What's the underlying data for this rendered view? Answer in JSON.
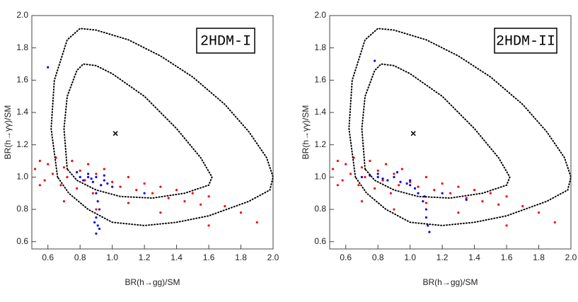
{
  "chart_data": [
    {
      "type": "scatter",
      "title": "2HDM-I",
      "x_label": "BR(h→gg)/SM",
      "y_label": "BR(h→γγ)/SM",
      "xlim": [
        0.5,
        2.0
      ],
      "ylim": [
        0.555,
        2.0
      ],
      "xticks": [
        0.6,
        0.8,
        {
          "value": 1,
          "label": "1.0"
        },
        1.2,
        1.4,
        1.6,
        1.8,
        {
          "value": 2,
          "label": "2.0"
        }
      ],
      "yticks": [
        0.6,
        0.8,
        {
          "value": 1,
          "label": "1.0"
        },
        1.2,
        1.4,
        1.6,
        1.8,
        {
          "value": 2,
          "label": "2.0"
        }
      ],
      "grid": false,
      "series": [
        {
          "color": "#ff0000",
          "style": "points",
          "x": [
            0.52,
            0.55,
            0.58,
            0.6,
            0.63,
            0.65,
            0.68,
            0.7,
            0.72,
            0.75,
            0.78,
            0.8,
            0.83,
            0.85,
            0.88,
            0.9,
            0.93,
            0.95,
            1.0,
            1.05,
            1.1,
            1.15,
            1.2,
            1.25,
            1.3,
            1.35,
            1.4,
            1.45,
            1.5,
            1.55,
            1.6,
            1.7,
            1.8,
            1.9,
            0.55,
            0.7,
            0.9,
            1.1,
            1.3,
            1.6
          ],
          "values": [
            1.05,
            1.1,
            0.98,
            1.08,
            1.02,
            1.12,
            0.95,
            1.06,
            1.0,
            1.1,
            0.93,
            1.04,
            0.98,
            1.08,
            0.9,
            1.02,
            0.95,
            1.05,
            0.97,
            0.94,
            1.0,
            0.92,
            0.96,
            0.9,
            0.94,
            0.87,
            0.92,
            0.85,
            0.9,
            0.83,
            0.88,
            0.82,
            0.78,
            0.72,
            0.95,
            0.85,
            0.8,
            0.84,
            0.78,
            0.7
          ]
        },
        {
          "color": "#0000ff",
          "style": "points",
          "x": [
            0.8,
            0.82,
            0.85,
            0.87,
            0.88,
            0.9,
            0.9,
            0.91,
            0.92,
            0.93,
            0.95,
            0.97,
            1.0,
            0.9,
            0.91,
            0.9,
            0.92,
            0.89,
            0.6,
            1.2,
            0.78,
            0.85,
            0.95
          ],
          "values": [
            1.0,
            0.98,
            1.02,
            0.99,
            0.97,
            1.0,
            0.9,
            0.85,
            0.8,
            0.95,
            0.98,
            0.96,
            0.94,
            0.75,
            0.7,
            0.65,
            0.68,
            0.72,
            1.68,
            0.9,
            1.03,
            1.0,
            1.01
          ]
        },
        {
          "color": "#000000",
          "style": "dotted",
          "x": [
            0.66,
            0.62,
            0.64,
            0.72,
            0.8,
            0.9,
            1.1,
            1.3,
            1.5,
            1.7,
            1.85,
            1.96,
            2.0,
            1.98,
            1.85,
            1.6,
            1.4,
            1.2,
            1.0,
            0.85,
            0.73,
            0.66
          ],
          "values": [
            1.0,
            1.3,
            1.6,
            1.85,
            1.92,
            1.91,
            1.85,
            1.75,
            1.62,
            1.45,
            1.28,
            1.12,
            1.0,
            0.92,
            0.85,
            0.76,
            0.72,
            0.7,
            0.72,
            0.8,
            0.9,
            1.0
          ]
        },
        {
          "color": "#000000",
          "style": "dotted",
          "x": [
            0.72,
            0.7,
            0.72,
            0.78,
            0.82,
            0.9,
            1.0,
            1.2,
            1.4,
            1.55,
            1.62,
            1.6,
            1.45,
            1.25,
            1.05,
            0.9,
            0.78,
            0.72
          ],
          "values": [
            1.05,
            1.3,
            1.5,
            1.66,
            1.7,
            1.69,
            1.64,
            1.5,
            1.3,
            1.12,
            1.0,
            0.95,
            0.9,
            0.87,
            0.88,
            0.92,
            0.98,
            1.05
          ]
        },
        {
          "color": "#000000",
          "style": "cross",
          "x": [
            1.02
          ],
          "values": [
            1.27
          ]
        }
      ]
    },
    {
      "type": "scatter",
      "title": "2HDM-II",
      "x_label": "BR(h→gg)/SM",
      "y_label": "BR(h→γγ)/SM",
      "xlim": [
        0.5,
        2.0
      ],
      "ylim": [
        0.555,
        2.0
      ],
      "xticks": [
        0.6,
        0.8,
        {
          "value": 1,
          "label": "1.0"
        },
        1.2,
        1.4,
        1.6,
        1.8,
        {
          "value": 2,
          "label": "2.0"
        }
      ],
      "yticks": [
        0.6,
        0.8,
        {
          "value": 1,
          "label": "1.0"
        },
        1.2,
        1.4,
        1.6,
        1.8,
        {
          "value": 2,
          "label": "2.0"
        }
      ],
      "grid": false,
      "series": [
        {
          "color": "#ff0000",
          "style": "points",
          "x": [
            0.52,
            0.55,
            0.58,
            0.6,
            0.63,
            0.65,
            0.68,
            0.7,
            0.72,
            0.75,
            0.78,
            0.8,
            0.83,
            0.85,
            0.88,
            0.9,
            0.93,
            0.95,
            1.0,
            1.05,
            1.1,
            1.15,
            1.2,
            1.25,
            1.3,
            1.35,
            1.4,
            1.45,
            1.5,
            1.55,
            1.6,
            1.7,
            1.8,
            1.9,
            0.55,
            0.7,
            0.9,
            1.1,
            1.3,
            1.6
          ],
          "values": [
            1.05,
            1.1,
            0.98,
            1.08,
            1.02,
            1.12,
            0.95,
            1.06,
            1.0,
            1.1,
            0.93,
            1.04,
            0.98,
            1.08,
            0.9,
            1.02,
            0.95,
            1.05,
            0.97,
            0.94,
            1.0,
            0.92,
            0.96,
            0.9,
            0.94,
            0.87,
            0.92,
            0.85,
            0.9,
            0.83,
            0.88,
            0.82,
            0.78,
            0.72,
            0.95,
            0.85,
            0.8,
            0.84,
            0.78,
            0.7
          ]
        },
        {
          "color": "#0000ff",
          "style": "points",
          "x": [
            0.8,
            0.83,
            0.86,
            0.9,
            0.94,
            0.98,
            1.0,
            1.03,
            1.05,
            1.08,
            1.1,
            1.1,
            1.12,
            1.11,
            1.09,
            0.7,
            0.78,
            0.8,
            1.2,
            1.35,
            0.75,
            0.92,
            1.0
          ],
          "values": [
            1.0,
            0.99,
            0.98,
            1.0,
            0.97,
            0.96,
            0.95,
            0.93,
            0.9,
            0.85,
            0.8,
            0.75,
            0.66,
            0.7,
            0.88,
            1.0,
            1.72,
            1.02,
            0.9,
            0.86,
            1.01,
            1.03,
            0.98
          ]
        },
        {
          "color": "#000000",
          "style": "dotted",
          "x": [
            0.66,
            0.62,
            0.64,
            0.72,
            0.8,
            0.9,
            1.1,
            1.3,
            1.5,
            1.7,
            1.85,
            1.96,
            2.0,
            1.98,
            1.85,
            1.6,
            1.4,
            1.2,
            1.0,
            0.85,
            0.73,
            0.66
          ],
          "values": [
            1.0,
            1.3,
            1.6,
            1.85,
            1.92,
            1.91,
            1.85,
            1.75,
            1.62,
            1.45,
            1.28,
            1.12,
            1.0,
            0.92,
            0.85,
            0.76,
            0.72,
            0.7,
            0.72,
            0.8,
            0.9,
            1.0
          ]
        },
        {
          "color": "#000000",
          "style": "dotted",
          "x": [
            0.72,
            0.7,
            0.72,
            0.78,
            0.82,
            0.9,
            1.0,
            1.2,
            1.4,
            1.55,
            1.62,
            1.6,
            1.45,
            1.25,
            1.05,
            0.9,
            0.78,
            0.72
          ],
          "values": [
            1.05,
            1.3,
            1.5,
            1.66,
            1.7,
            1.69,
            1.64,
            1.5,
            1.3,
            1.12,
            1.0,
            0.95,
            0.9,
            0.87,
            0.88,
            0.92,
            0.98,
            1.05
          ]
        },
        {
          "color": "#000000",
          "style": "cross",
          "x": [
            1.02
          ],
          "values": [
            1.27
          ]
        }
      ]
    }
  ]
}
